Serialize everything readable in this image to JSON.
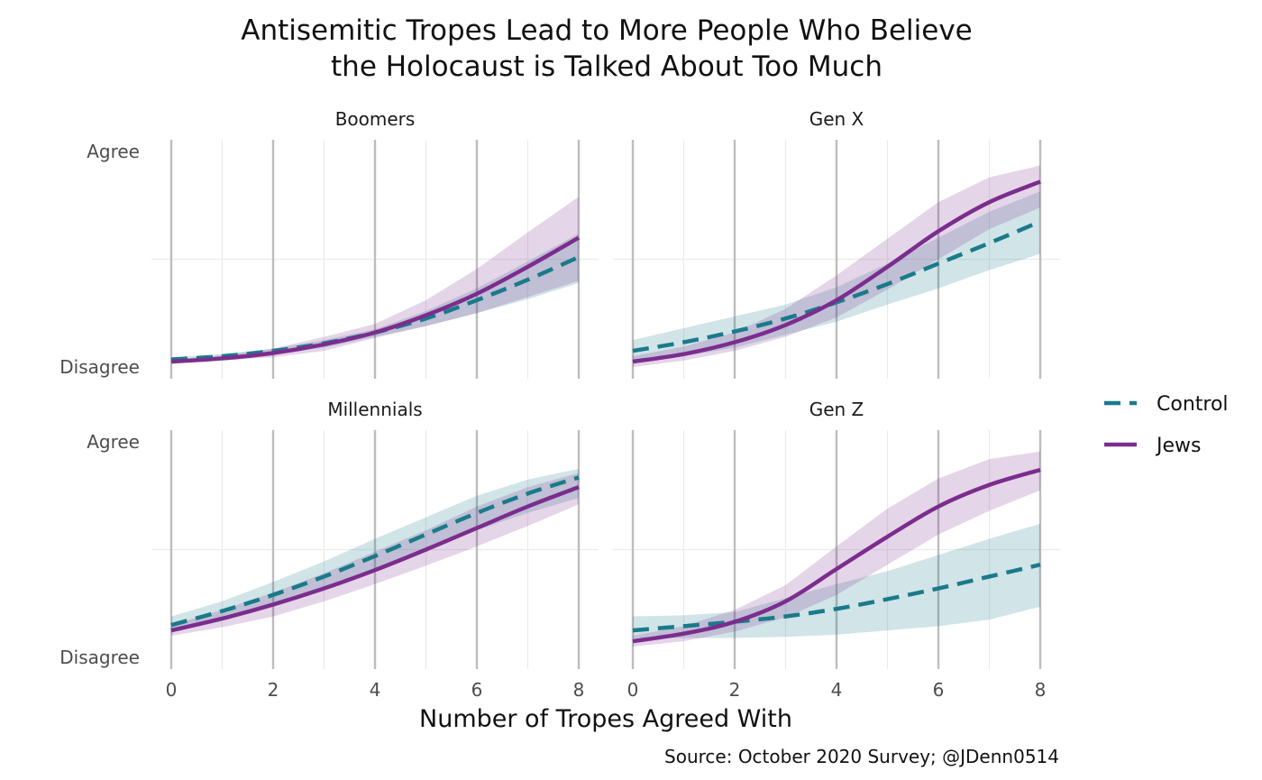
{
  "colors": {
    "control": "#1a7a8a",
    "jews": "#7b2d8e",
    "control_band": "#1a7a8a",
    "jews_band": "#7b2d8e",
    "major_grid": "#bdbdbd",
    "minor_grid": "#ebebeb"
  },
  "chart_data": {
    "type": "line",
    "title": [
      "Antisemitic Tropes Lead to More People Who Believe",
      "the Holocaust is Talked About Too Much"
    ],
    "xlabel": "Number of Tropes Agreed With",
    "caption": "Source: October 2020 Survey; @JDenn0514",
    "x_ticks": [
      0,
      2,
      4,
      6,
      8
    ],
    "xlim": [
      0,
      8
    ],
    "ylim": [
      1,
      3
    ],
    "y_ticks": [
      {
        "value": 1,
        "label": "Disagree"
      },
      {
        "value": 3,
        "label": "Agree"
      }
    ],
    "legend": {
      "position": "right",
      "entries": [
        {
          "key": "control",
          "label": "Control",
          "dash": "dashed"
        },
        {
          "key": "jews",
          "label": "Jews",
          "dash": "solid"
        }
      ]
    },
    "x": [
      0,
      1,
      2,
      3,
      4,
      5,
      6,
      7,
      8
    ],
    "panels": [
      {
        "name": "Boomers",
        "series": [
          {
            "key": "control",
            "values": [
              1.07,
              1.1,
              1.15,
              1.22,
              1.32,
              1.45,
              1.62,
              1.81,
              2.02
            ],
            "lower": [
              1.05,
              1.08,
              1.12,
              1.18,
              1.28,
              1.38,
              1.5,
              1.63,
              1.78
            ],
            "upper": [
              1.09,
              1.12,
              1.17,
              1.25,
              1.35,
              1.52,
              1.73,
              1.98,
              2.24
            ]
          },
          {
            "key": "jews",
            "values": [
              1.05,
              1.08,
              1.13,
              1.21,
              1.32,
              1.48,
              1.68,
              1.93,
              2.2
            ],
            "lower": [
              1.03,
              1.06,
              1.09,
              1.15,
              1.27,
              1.38,
              1.5,
              1.65,
              1.8
            ],
            "upper": [
              1.07,
              1.11,
              1.17,
              1.28,
              1.4,
              1.62,
              1.91,
              2.25,
              2.58
            ]
          }
        ]
      },
      {
        "name": "Gen X",
        "series": [
          {
            "key": "control",
            "values": [
              1.15,
              1.23,
              1.33,
              1.45,
              1.6,
              1.77,
              1.96,
              2.15,
              2.35
            ],
            "lower": [
              1.05,
              1.1,
              1.18,
              1.3,
              1.42,
              1.58,
              1.73,
              1.9,
              2.05
            ],
            "upper": [
              1.25,
              1.36,
              1.47,
              1.58,
              1.74,
              1.96,
              2.2,
              2.44,
              2.63
            ]
          },
          {
            "key": "jews",
            "values": [
              1.05,
              1.12,
              1.23,
              1.39,
              1.62,
              1.93,
              2.26,
              2.53,
              2.72
            ],
            "lower": [
              1.0,
              1.06,
              1.15,
              1.28,
              1.46,
              1.72,
              2.0,
              2.28,
              2.48
            ],
            "upper": [
              1.1,
              1.19,
              1.32,
              1.54,
              1.85,
              2.19,
              2.53,
              2.76,
              2.87
            ]
          }
        ]
      },
      {
        "name": "Millennials",
        "series": [
          {
            "key": "control",
            "values": [
              1.3,
              1.43,
              1.58,
              1.75,
              1.94,
              2.14,
              2.34,
              2.52,
              2.67
            ],
            "lower": [
              1.25,
              1.35,
              1.47,
              1.62,
              1.8,
              2.0,
              2.18,
              2.34,
              2.48
            ],
            "upper": [
              1.38,
              1.52,
              1.7,
              1.89,
              2.1,
              2.3,
              2.5,
              2.65,
              2.75
            ]
          },
          {
            "key": "jews",
            "values": [
              1.25,
              1.36,
              1.49,
              1.64,
              1.81,
              2.0,
              2.2,
              2.4,
              2.58
            ],
            "lower": [
              1.2,
              1.28,
              1.38,
              1.52,
              1.68,
              1.85,
              2.03,
              2.22,
              2.42
            ],
            "upper": [
              1.3,
              1.44,
              1.6,
              1.78,
              1.98,
              2.18,
              2.4,
              2.58,
              2.71
            ]
          }
        ]
      },
      {
        "name": "Gen Z",
        "series": [
          {
            "key": "control",
            "values": [
              1.25,
              1.29,
              1.33,
              1.38,
              1.45,
              1.54,
              1.64,
              1.75,
              1.86
            ],
            "lower": [
              1.18,
              1.18,
              1.18,
              1.19,
              1.21,
              1.25,
              1.29,
              1.35,
              1.47
            ],
            "upper": [
              1.38,
              1.39,
              1.42,
              1.55,
              1.68,
              1.8,
              1.95,
              2.1,
              2.24
            ]
          },
          {
            "key": "jews",
            "values": [
              1.15,
              1.22,
              1.33,
              1.52,
              1.82,
              2.12,
              2.4,
              2.6,
              2.74
            ],
            "lower": [
              1.1,
              1.15,
              1.24,
              1.37,
              1.58,
              1.86,
              2.14,
              2.36,
              2.55
            ],
            "upper": [
              1.2,
              1.29,
              1.44,
              1.67,
              2.03,
              2.38,
              2.66,
              2.84,
              2.91
            ]
          }
        ]
      }
    ]
  }
}
